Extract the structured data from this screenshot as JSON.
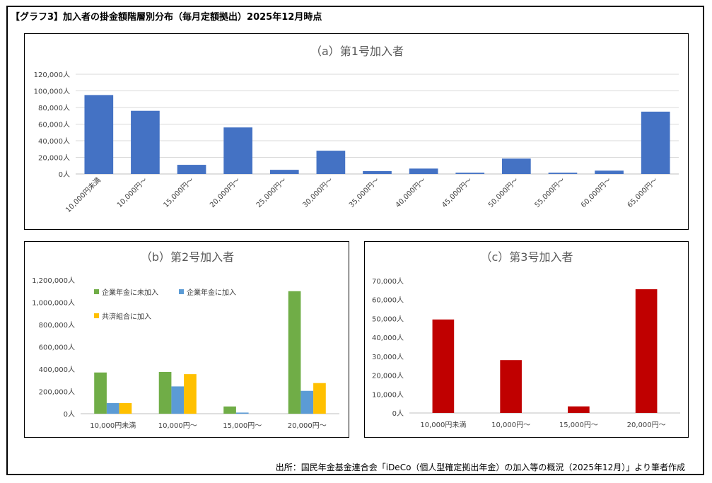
{
  "title": "【グラフ3】加入者の掛金額階層別分布（毎月定額拠出）2025年12月時点",
  "source_note": "出所：国民年金基金連合会「iDeCo（個人型確定拠出年金）の加入等の概況（2025年12月）」より筆者作成",
  "colors": {
    "blue": "#4472C4",
    "green": "#70AD47",
    "lightblue": "#5B9BD5",
    "gold": "#FFC000",
    "red": "#C00000",
    "grid": "#d9d9d9"
  },
  "chart_data": [
    {
      "type": "bar",
      "title": "（a）第1号加入者",
      "categories": [
        "10,000円未満",
        "10,000円～",
        "15,000円～",
        "20,000円～",
        "25,000円～",
        "30,000円～",
        "35,000円～",
        "40,000円～",
        "45,000円～",
        "50,000円～",
        "55,000円～",
        "60,000円～",
        "65,000円～"
      ],
      "series": [
        {
          "values": [
            95000,
            76000,
            11000,
            56000,
            5000,
            28000,
            3500,
            6500,
            1500,
            18500,
            1500,
            4000,
            75000
          ]
        }
      ],
      "ylim": [
        0,
        120000
      ],
      "yticks": [
        0,
        20000,
        40000,
        60000,
        80000,
        100000,
        120000
      ],
      "ytick_labels": [
        "0人",
        "20,000人",
        "40,000人",
        "60,000人",
        "80,000人",
        "100,000人",
        "120,000人"
      ],
      "grid": true
    },
    {
      "type": "bar",
      "title": "（b）第2号加入者",
      "categories": [
        "10,000円未満",
        "10,000円～",
        "15,000円～",
        "20,000円～"
      ],
      "series": [
        {
          "name": "企業年金に未加入",
          "values": [
            370000,
            375000,
            65000,
            1100000
          ]
        },
        {
          "name": "企業年金に加入",
          "values": [
            95000,
            245000,
            10000,
            205000
          ]
        },
        {
          "name": "共済組合に加入",
          "values": [
            95000,
            355000,
            0,
            275000
          ]
        }
      ],
      "ylim": [
        0,
        1200000
      ],
      "yticks": [
        0,
        200000,
        400000,
        600000,
        800000,
        1000000,
        1200000
      ],
      "ytick_labels": [
        "0人",
        "200,000人",
        "400,000人",
        "600,000人",
        "800,000人",
        "1,000,000人",
        "1,200,000人"
      ],
      "legend": "top-left",
      "grid": false
    },
    {
      "type": "bar",
      "title": "（c）第3号加入者",
      "categories": [
        "10,000円未満",
        "10,000円～",
        "15,000円～",
        "20,000円～"
      ],
      "series": [
        {
          "values": [
            49500,
            28000,
            3500,
            65500
          ]
        }
      ],
      "ylim": [
        0,
        70000
      ],
      "yticks": [
        0,
        10000,
        20000,
        30000,
        40000,
        50000,
        60000,
        70000
      ],
      "ytick_labels": [
        "0人",
        "10,000人",
        "20,000人",
        "30,000人",
        "40,000人",
        "50,000人",
        "60,000人",
        "70,000人"
      ],
      "grid": false
    }
  ]
}
